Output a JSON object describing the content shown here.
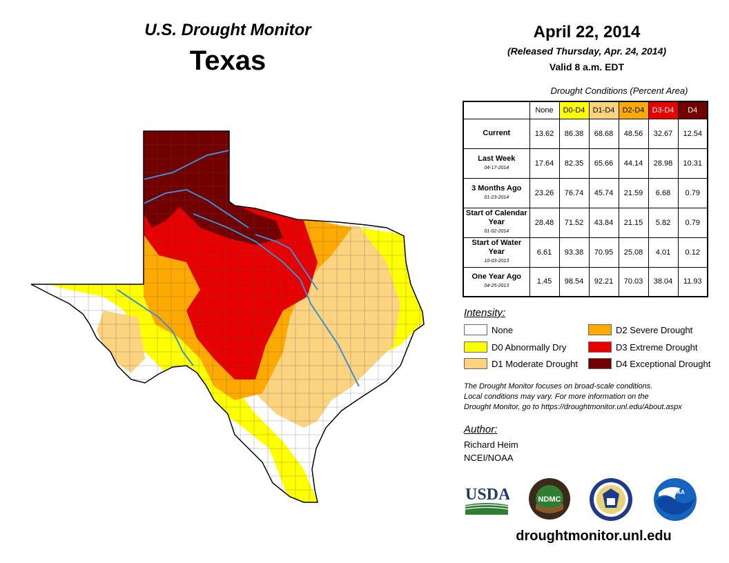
{
  "header": {
    "monitor_title": "U.S. Drought Monitor",
    "state": "Texas",
    "date": "April 22, 2014",
    "released": "(Released Thursday, Apr. 24, 2014)",
    "valid": "Valid 8 a.m. EDT"
  },
  "table": {
    "caption": "Drought Conditions (Percent Area)",
    "columns": [
      "None",
      "D0-D4",
      "D1-D4",
      "D2-D4",
      "D3-D4",
      "D4"
    ],
    "rows": [
      {
        "label": "Current",
        "date": "",
        "values": [
          "13.62",
          "86.38",
          "68.68",
          "48.56",
          "32.67",
          "12.54"
        ]
      },
      {
        "label": "Last Week",
        "date": "04-17-2014",
        "values": [
          "17.64",
          "82.35",
          "65.66",
          "44.14",
          "28.98",
          "10.31"
        ]
      },
      {
        "label": "3 Months Ago",
        "date": "01-23-2014",
        "values": [
          "23.26",
          "76.74",
          "45.74",
          "21.59",
          "6.68",
          "0.79"
        ]
      },
      {
        "label": "Start of Calendar Year",
        "date": "01-02-2014",
        "values": [
          "28.48",
          "71.52",
          "43.84",
          "21.15",
          "5.82",
          "0.79"
        ]
      },
      {
        "label": "Start of Water Year",
        "date": "10-03-2013",
        "values": [
          "6.61",
          "93.38",
          "70.95",
          "25.08",
          "4.01",
          "0.12"
        ]
      },
      {
        "label": "One Year Ago",
        "date": "04-25-2013",
        "values": [
          "1.45",
          "98.54",
          "92.21",
          "70.03",
          "38.04",
          "11.93"
        ]
      }
    ]
  },
  "legend": {
    "title": "Intensity:",
    "items": [
      {
        "label": "None",
        "color": "#ffffff"
      },
      {
        "label": "D0 Abnormally Dry",
        "color": "#ffff00"
      },
      {
        "label": "D1 Moderate Drought",
        "color": "#fcd37f"
      },
      {
        "label": "D2 Severe Drought",
        "color": "#ffaa00"
      },
      {
        "label": "D3 Extreme Drought",
        "color": "#e60000"
      },
      {
        "label": "D4 Exceptional Drought",
        "color": "#730000"
      }
    ]
  },
  "note": {
    "line1": "The Drought Monitor focuses on broad-scale conditions.",
    "line2": "Local conditions may vary. For more information on the",
    "line3": "Drought Monitor, go to https://droughtmonitor.unl.edu/About.aspx"
  },
  "author": {
    "title": "Author:",
    "name": "Richard Heim",
    "org": "NCEI/NOAA"
  },
  "logos": {
    "usda": "USDA",
    "ndmc": "NDMC",
    "noaa": "NOAA"
  },
  "website": "droughtmonitor.unl.edu",
  "colors": {
    "none": "#ffffff",
    "d0": "#ffff00",
    "d1": "#fcd37f",
    "d2": "#ffaa00",
    "d3": "#e60000",
    "d4": "#730000",
    "river": "#3b8fd6"
  }
}
